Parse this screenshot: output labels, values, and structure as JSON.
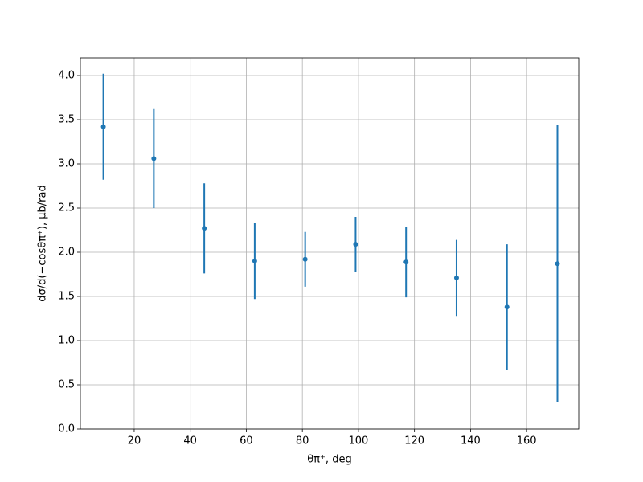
{
  "chart_data": {
    "type": "errorbar",
    "xlabel": "θπ⁺, deg",
    "ylabel": "dσ/d(−cosθπ⁺), μb/rad",
    "x": [
      9,
      27,
      45,
      63,
      81,
      99,
      117,
      135,
      153,
      171
    ],
    "series": [
      {
        "color": "#1f77b4",
        "values": [
          3.42,
          3.06,
          2.27,
          1.9,
          1.92,
          2.09,
          1.89,
          1.71,
          1.38,
          1.87
        ],
        "errors": [
          0.6,
          0.56,
          0.51,
          0.43,
          0.31,
          0.31,
          0.4,
          0.43,
          0.71,
          1.57
        ]
      }
    ],
    "xlim": [
      0.8,
      178.6
    ],
    "ylim": [
      0,
      4.2
    ],
    "xticks": [
      20,
      40,
      60,
      80,
      100,
      120,
      140,
      160
    ],
    "yticks": [
      {
        "value": 0,
        "label": "0.0"
      },
      0.5,
      {
        "value": 1,
        "label": "1.0"
      },
      1.5,
      {
        "value": 2,
        "label": "2.0"
      },
      2.5,
      {
        "value": 3,
        "label": "3.0"
      },
      3.5,
      {
        "value": 4,
        "label": "4.0"
      }
    ],
    "grid": true
  }
}
